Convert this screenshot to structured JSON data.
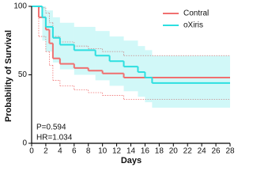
{
  "chart_data": {
    "type": "step",
    "x_label": "Days",
    "y_label": "Probability of Survival",
    "xlim": [
      0,
      28
    ],
    "xticks": [
      0,
      2,
      4,
      6,
      8,
      10,
      12,
      14,
      16,
      18,
      20,
      22,
      24,
      26,
      28
    ],
    "ylim": [
      0,
      100
    ],
    "yticks": [
      0,
      50,
      100
    ],
    "legend": "upper right",
    "annotations": [
      "P=0.594",
      "HR=1.034"
    ],
    "series": [
      {
        "name": "Contral",
        "color": "#f07070",
        "band": "dotted",
        "x": [
          0,
          1,
          2,
          2.5,
          3,
          4,
          6,
          8,
          10,
          13,
          28
        ],
        "values": [
          100,
          92,
          83,
          73,
          62,
          58,
          55,
          53,
          51,
          48,
          48
        ],
        "upper": [
          100,
          99,
          95,
          88,
          78,
          74,
          71,
          69,
          67,
          64,
          64
        ],
        "lower": [
          100,
          78,
          67,
          57,
          46,
          42,
          39,
          37,
          35,
          32,
          32
        ]
      },
      {
        "name": "oXiris",
        "color": "#2ddfe0",
        "band": "shaded",
        "x": [
          0,
          1.5,
          2,
          3,
          4,
          6,
          9,
          11,
          13,
          15,
          16,
          17,
          28
        ],
        "values": [
          100,
          92,
          85,
          77,
          72,
          68,
          64,
          60,
          56,
          52,
          48,
          44,
          44
        ],
        "upper": [
          100,
          100,
          97,
          92,
          88,
          85,
          82,
          78,
          75,
          71,
          68,
          64,
          64
        ],
        "lower": [
          100,
          75,
          67,
          59,
          54,
          50,
          46,
          42,
          38,
          34,
          30,
          26,
          26
        ]
      }
    ]
  }
}
